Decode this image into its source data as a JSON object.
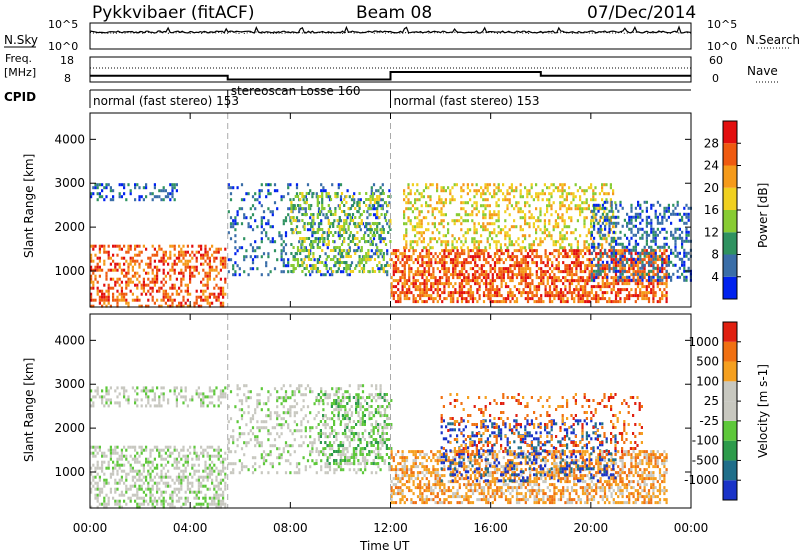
{
  "header": {
    "site": "Pykkvibaer (fitACF)",
    "beam": "Beam 08",
    "date": "07/Dec/2014"
  },
  "top_panels": {
    "nsky_label": "N.Sky",
    "nsearch_label": "N.Search",
    "freq_label_1": "Freq.",
    "freq_label_2": "[MHz]",
    "nave_label": "Nave",
    "cpid_label": "CPID",
    "noise_ticks_left": [
      "10^5",
      "10^0"
    ],
    "noise_ticks_right": [
      "10^5",
      "10^0"
    ],
    "freq_ticks": [
      "18",
      "8"
    ],
    "nave_ticks": [
      "60",
      "0"
    ],
    "cpid_segments": [
      {
        "text": "normal (fast stereo) 153",
        "start_hour": 0.0,
        "end_hour": 5.5
      },
      {
        "text": "stereoscan Losse 160",
        "start_hour": 5.5,
        "end_hour": 12.0
      },
      {
        "text": "normal (fast stereo) 153",
        "start_hour": 12.0,
        "end_hour": 24.0
      }
    ],
    "freq_profile": [
      {
        "hour": 0.0,
        "mhz": 10.5
      },
      {
        "hour": 5.5,
        "mhz": 10.5
      },
      {
        "hour": 5.5,
        "mhz": 9.0
      },
      {
        "hour": 12.0,
        "mhz": 9.0
      },
      {
        "hour": 12.0,
        "mhz": 12.0
      },
      {
        "hour": 18.0,
        "mhz": 12.0
      },
      {
        "hour": 18.0,
        "mhz": 10.5
      },
      {
        "hour": 24.0,
        "mhz": 10.5
      }
    ]
  },
  "chart_data": [
    {
      "type": "heatmap",
      "title": "",
      "xlabel": "Time UT",
      "ylabel": "Slant Range [km]",
      "xlim_hours": [
        0,
        24
      ],
      "ylim": [
        180,
        4600
      ],
      "x_ticks": [
        "00:00",
        "04:00",
        "08:00",
        "12:00",
        "16:00",
        "20:00",
        "00:00"
      ],
      "y_ticks": [
        "1000",
        "2000",
        "3000",
        "4000"
      ],
      "colorbar": {
        "label": "Power [dB]",
        "ticks": [
          "4",
          "8",
          "12",
          "16",
          "20",
          "24",
          "28"
        ],
        "colors": [
          "#0022ee",
          "#3a6ea8",
          "#2f9260",
          "#88cc33",
          "#f0d020",
          "#f59a1a",
          "#ef5a10",
          "#e20e0e"
        ]
      },
      "scatter_regions": [
        {
          "t0": 0.0,
          "t1": 5.4,
          "r0": 200,
          "r1": 1600,
          "level": 6,
          "density": 0.45
        },
        {
          "t0": 0.0,
          "t1": 3.5,
          "r0": 2600,
          "r1": 3000,
          "level": 1,
          "density": 0.3
        },
        {
          "t0": 5.5,
          "t1": 12.0,
          "r0": 900,
          "r1": 3000,
          "level": 1,
          "density": 0.22
        },
        {
          "t0": 8.0,
          "t1": 12.0,
          "r0": 1000,
          "r1": 2800,
          "level": 3,
          "density": 0.35
        },
        {
          "t0": 12.0,
          "t1": 23.0,
          "r0": 300,
          "r1": 1500,
          "level": 6,
          "density": 0.6
        },
        {
          "t0": 12.5,
          "t1": 21.0,
          "r0": 1500,
          "r1": 3000,
          "level": 4,
          "density": 0.35
        },
        {
          "t0": 20.0,
          "t1": 24.0,
          "r0": 800,
          "r1": 2600,
          "level": 1,
          "density": 0.4
        }
      ]
    },
    {
      "type": "heatmap",
      "title": "",
      "xlabel": "Time UT",
      "ylabel": "Slant Range [km]",
      "xlim_hours": [
        0,
        24
      ],
      "ylim": [
        180,
        4600
      ],
      "x_ticks": [
        "00:00",
        "04:00",
        "08:00",
        "12:00",
        "16:00",
        "20:00",
        "00:00"
      ],
      "y_ticks": [
        "1000",
        "2000",
        "3000",
        "4000"
      ],
      "colorbar": {
        "label": "Velocity [m s-1]",
        "ticks": [
          "1000",
          "500",
          "100",
          "25",
          "-25",
          "-100",
          "-500",
          "-1000"
        ],
        "colors": [
          "#1a33c8",
          "#1f6e8a",
          "#2d9b4b",
          "#5ec83a",
          "#c8c8c0",
          "#c8c8c0",
          "#f5a020",
          "#f07012",
          "#e02010"
        ]
      },
      "scatter_regions": [
        {
          "t0": 0.0,
          "t1": 5.4,
          "r0": 200,
          "r1": 1600,
          "level": 4,
          "density": 0.45
        },
        {
          "t0": 0.0,
          "t1": 5.4,
          "r0": 2500,
          "r1": 2950,
          "level": 4,
          "density": 0.35
        },
        {
          "t0": 5.5,
          "t1": 12.0,
          "r0": 1000,
          "r1": 3000,
          "level": 4,
          "density": 0.25
        },
        {
          "t0": 9.0,
          "t1": 12.0,
          "r0": 1200,
          "r1": 2800,
          "level": 3,
          "density": 0.3
        },
        {
          "t0": 12.0,
          "t1": 23.0,
          "r0": 300,
          "r1": 1500,
          "level": 6,
          "density": 0.55
        },
        {
          "t0": 14.0,
          "t1": 21.0,
          "r0": 800,
          "r1": 2200,
          "level": 0,
          "density": 0.25
        },
        {
          "t0": 14.0,
          "t1": 22.0,
          "r0": 1400,
          "r1": 2800,
          "level": 7,
          "density": 0.18
        }
      ]
    }
  ]
}
